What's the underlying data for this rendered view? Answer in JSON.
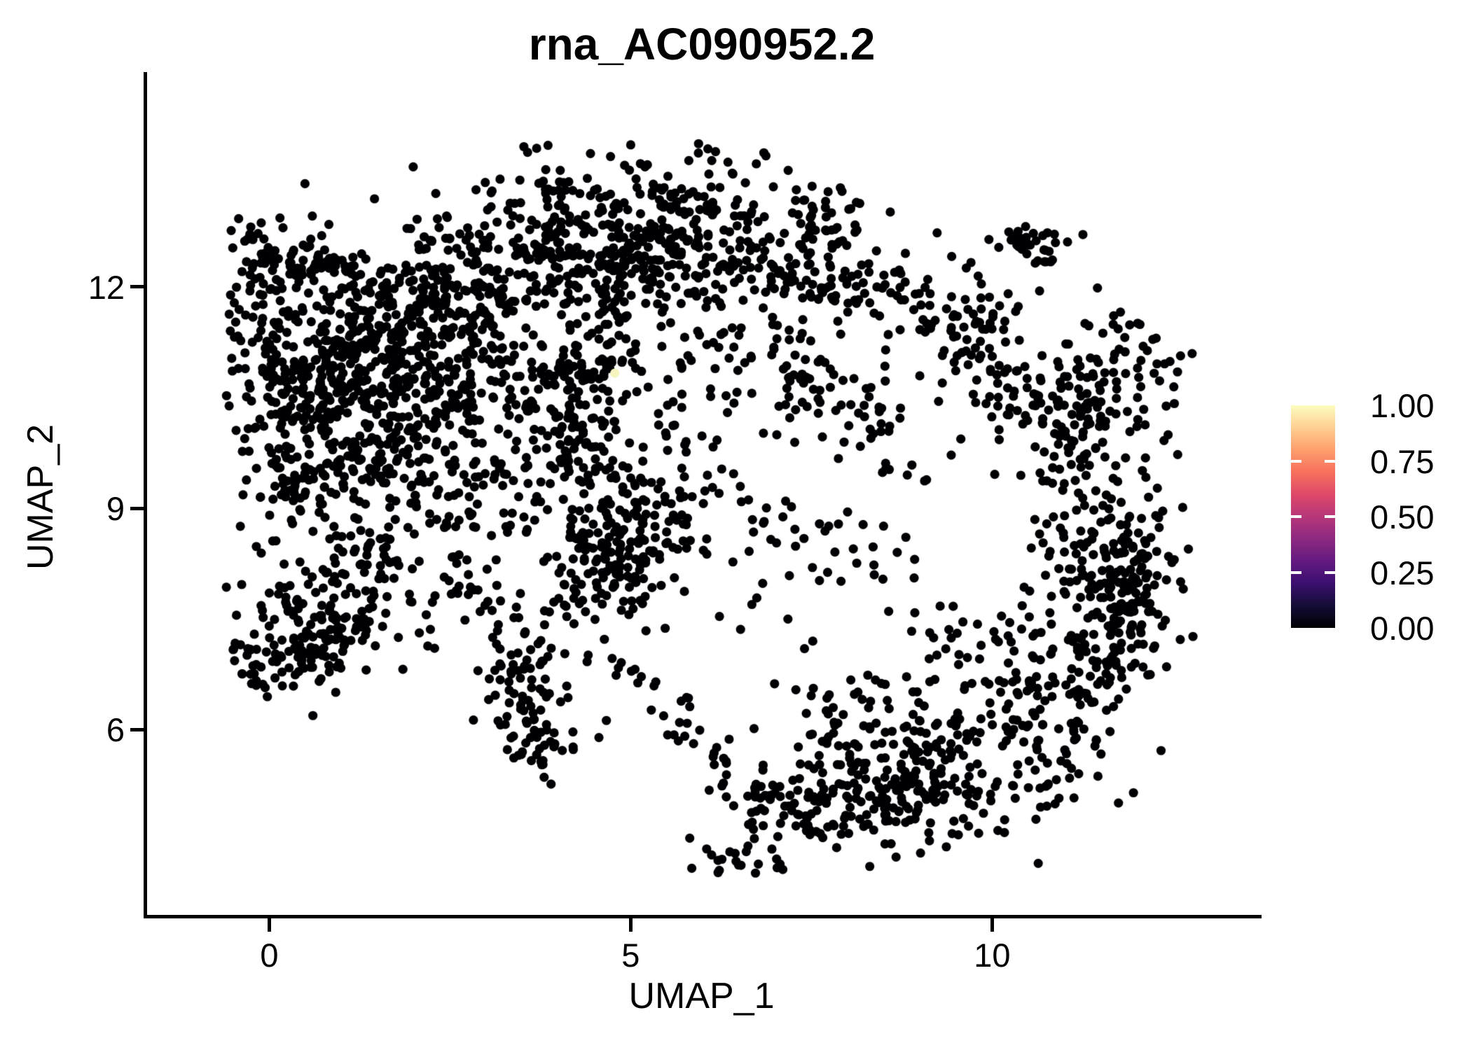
{
  "figure": {
    "background": "#ffffff",
    "title": "rna_AC090952.2"
  },
  "chart_data": {
    "type": "scatter",
    "title": "rna_AC090952.2",
    "xlabel": "UMAP_1",
    "ylabel": "UMAP_2",
    "x_ticks": [
      0,
      5,
      10
    ],
    "y_ticks": [
      6,
      9,
      12
    ],
    "xlim": [
      -1.69,
      13.65
    ],
    "ylim": [
      3.49,
      14.89
    ],
    "grid": false,
    "point_color": "#000004",
    "point_radius_px": 6.6,
    "n_points_estimate": 3950,
    "seed": 42,
    "cloud_bounds": {
      "x": [
        -0.62,
        12.78
      ],
      "y": [
        4.05,
        13.95
      ]
    },
    "highlight_point": {
      "x": 4.78,
      "y": 10.83,
      "value": 1.0,
      "color": "#F6F5BF"
    },
    "density_model_note": "estimated cluster blobs [cx,cy,sx,sy,n] in data units reconstructing the UMAP point cloud; all points have feature value 0 (black) except highlight_point",
    "clusters": [
      [
        1.7,
        11.34,
        0.73,
        0.66,
        270
      ],
      [
        0.34,
        10.77,
        0.73,
        0.76,
        260
      ],
      [
        0.34,
        12.09,
        0.73,
        0.47,
        140
      ],
      [
        0.63,
        9.44,
        0.78,
        0.57,
        150
      ],
      [
        0.44,
        7.74,
        0.78,
        0.66,
        100
      ],
      [
        1.11,
        7.46,
        0.34,
        0.28,
        60
      ],
      [
        0.05,
        6.99,
        0.32,
        0.31,
        50
      ],
      [
        2.08,
        10.58,
        0.53,
        0.85,
        120
      ],
      [
        4.02,
        12.76,
        0.82,
        0.59,
        270
      ],
      [
        2.57,
        11.81,
        0.48,
        0.47,
        80
      ],
      [
        4.12,
        10.58,
        0.92,
        0.9,
        300
      ],
      [
        4.65,
        8.4,
        0.53,
        0.47,
        130
      ],
      [
        5.86,
        12.76,
        0.73,
        0.59,
        190
      ],
      [
        7.41,
        12.52,
        0.63,
        0.55,
        120
      ],
      [
        8.96,
        11.9,
        0.73,
        0.57,
        65
      ],
      [
        10.71,
        12.52,
        0.21,
        0.16,
        35
      ],
      [
        6.73,
        11.43,
        0.68,
        0.62,
        85
      ],
      [
        11.09,
        10.49,
        0.82,
        0.81,
        220
      ],
      [
        11.68,
        8.31,
        0.63,
        1.04,
        260
      ],
      [
        10.76,
        6.53,
        0.78,
        0.76,
        170
      ],
      [
        8.77,
        5.46,
        1.02,
        0.59,
        280
      ],
      [
        7.27,
        4.71,
        0.63,
        0.43,
        80
      ],
      [
        3.83,
        9.26,
        0.87,
        0.76,
        70
      ],
      [
        5.48,
        9.73,
        0.68,
        0.76,
        70
      ],
      [
        7.41,
        8.5,
        0.97,
        0.85,
        45
      ],
      [
        8.38,
        10.58,
        0.87,
        0.76,
        60
      ],
      [
        2.08,
        8.31,
        0.58,
        0.76,
        45
      ]
    ],
    "segments": [
      [
        3.15,
        7.46,
        3.92,
        5.66,
        0.28,
        110
      ],
      [
        4.6,
        7.08,
        7.07,
        4.85,
        0.17,
        55
      ]
    ],
    "legend": {
      "orientation": "vertical",
      "position": "right",
      "tick_values": [
        1.0,
        0.75,
        0.5,
        0.25,
        0.0
      ],
      "tick_labels": [
        "1.00",
        "0.75",
        "0.50",
        "0.25",
        "0.00"
      ],
      "colormap": "magma",
      "gradient_stops": [
        {
          "v": 0.0,
          "c": "#000004"
        },
        {
          "v": 0.1,
          "c": "#140e36"
        },
        {
          "v": 0.2,
          "c": "#3b0f70"
        },
        {
          "v": 0.3,
          "c": "#641a80"
        },
        {
          "v": 0.4,
          "c": "#8c2981"
        },
        {
          "v": 0.5,
          "c": "#b73779"
        },
        {
          "v": 0.6,
          "c": "#de4968"
        },
        {
          "v": 0.7,
          "c": "#f7705c"
        },
        {
          "v": 0.8,
          "c": "#fe9f6d"
        },
        {
          "v": 0.9,
          "c": "#fecf92"
        },
        {
          "v": 1.0,
          "c": "#fcfdbf"
        }
      ]
    }
  }
}
